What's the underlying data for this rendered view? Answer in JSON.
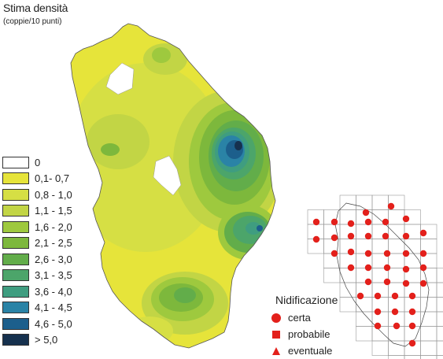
{
  "title": "Stima densità",
  "subtitle": "(coppie/10 punti)",
  "legend": [
    {
      "label": "0",
      "color": "#ffffff"
    },
    {
      "label": "0,1- 0,7",
      "color": "#e6e43a"
    },
    {
      "label": "0,8 - 1,0",
      "color": "#d6df44"
    },
    {
      "label": "1,1 - 1,5",
      "color": "#c2d545"
    },
    {
      "label": "1,6 - 2,0",
      "color": "#9ec93e"
    },
    {
      "label": "2,1 - 2,5",
      "color": "#7db83c"
    },
    {
      "label": "2,6 - 3,0",
      "color": "#62ad4a"
    },
    {
      "label": "3,1 - 3,5",
      "color": "#4ca56a"
    },
    {
      "label": "3,6 - 4,0",
      "color": "#3f9d80"
    },
    {
      "label": "4,1 - 4,5",
      "color": "#2a83a6"
    },
    {
      "label": "4,6 - 5,0",
      "color": "#1c5f8c"
    },
    {
      "label": "> 5,0",
      "color": "#16314e"
    }
  ],
  "nidificazione": {
    "title": "Nidificazione",
    "items": [
      {
        "label": "certa",
        "symbol": "circle-icon",
        "color": "#e3201b"
      },
      {
        "label": "probabile",
        "symbol": "square-icon",
        "color": "#e3201b"
      },
      {
        "label": "eventuale",
        "symbol": "triangle-icon",
        "color": "#e3201b"
      }
    ]
  }
}
